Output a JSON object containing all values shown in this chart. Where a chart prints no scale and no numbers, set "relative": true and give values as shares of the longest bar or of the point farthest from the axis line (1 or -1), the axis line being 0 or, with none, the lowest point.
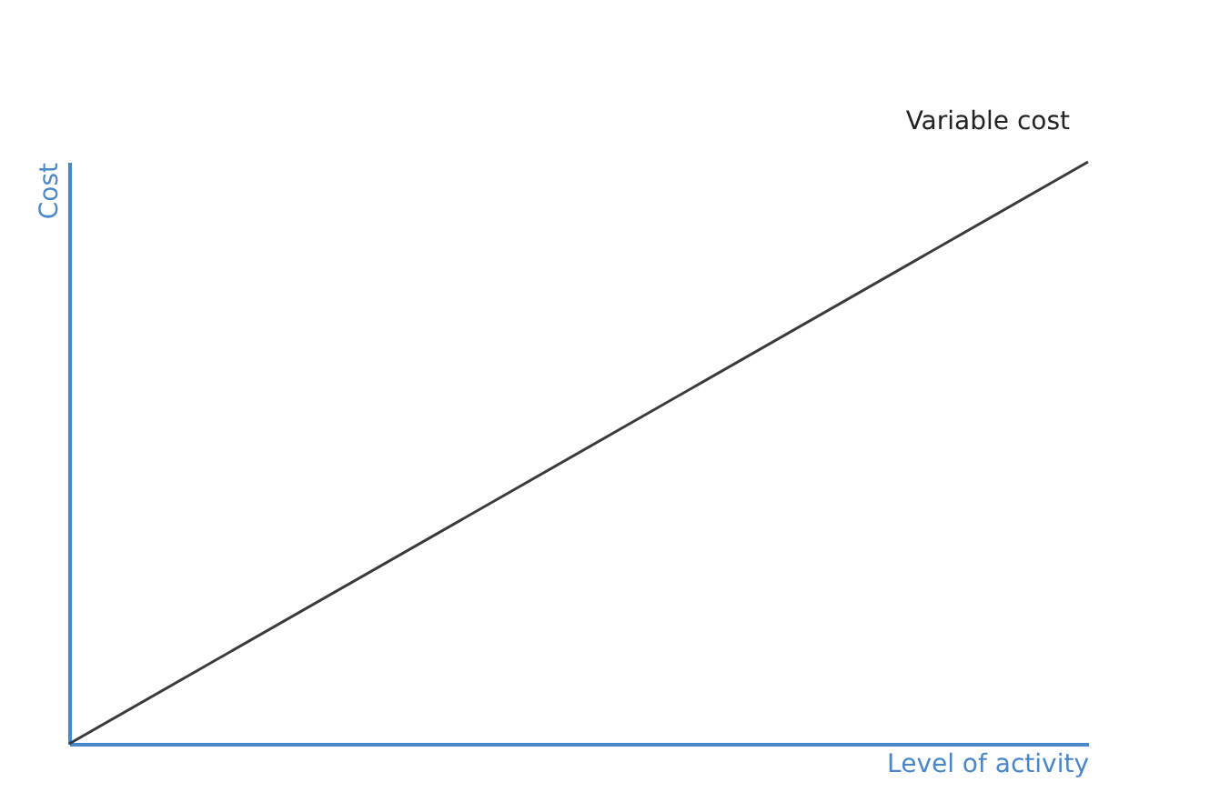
{
  "chart_data": {
    "type": "line",
    "relative": true,
    "xlabel": "Level of activity",
    "ylabel": "Cost",
    "categories": [
      null,
      null
    ],
    "series": [
      {
        "name": "Variable cost",
        "color": "#3a3a3a",
        "values": [
          0,
          1
        ]
      }
    ],
    "legend": false,
    "grid": false,
    "marker": "none",
    "line_style": "solid",
    "tick_labels": false
  }
}
